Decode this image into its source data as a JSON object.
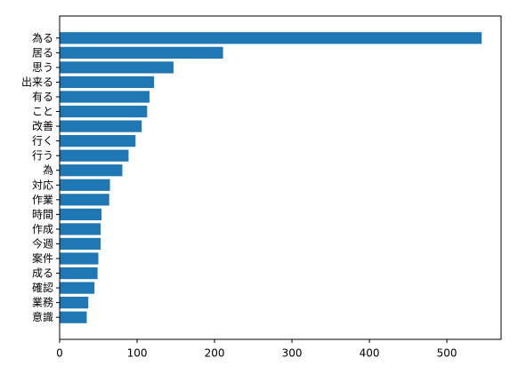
{
  "chart_data": {
    "type": "bar",
    "orientation": "horizontal",
    "categories": [
      "為る",
      "居る",
      "思う",
      "出来る",
      "有る",
      "こと",
      "改善",
      "行く",
      "行う",
      "為",
      "対応",
      "作業",
      "時間",
      "作成",
      "今週",
      "案件",
      "成る",
      "確認",
      "業務",
      "意識"
    ],
    "values": [
      545,
      211,
      147,
      122,
      116,
      113,
      106,
      98,
      89,
      81,
      65,
      64,
      54,
      53,
      53,
      50,
      49,
      45,
      37,
      35
    ],
    "xlim": [
      0,
      570
    ],
    "xticks": [
      0,
      100,
      200,
      300,
      400,
      500
    ],
    "title": "",
    "xlabel": "",
    "ylabel": "",
    "grid": false,
    "bar_color": "#1f77b4"
  }
}
